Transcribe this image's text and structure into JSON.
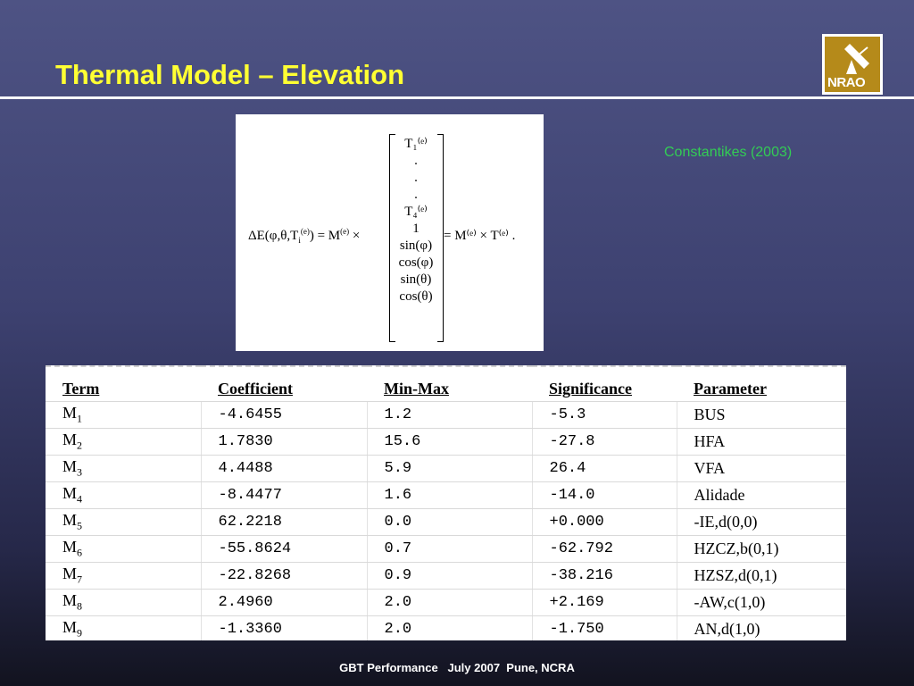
{
  "slide": {
    "title": "Thermal Model – Elevation",
    "citation": "Constantikes (2003)",
    "footer": "GBT Performance   July 2007  Pune, NCRA",
    "logo_text": "NRAO"
  },
  "equation": {
    "lhs": "ΔE(φ,θ,T",
    "lhs_sub": "i",
    "lhs_sup": "(e)",
    "lhs_tail": ") = M",
    "m_sup": "(e)",
    "times": "×",
    "vector": [
      "T₁⁽ᵉ⁾",
      ".",
      ".",
      ".",
      "T₄⁽ᵉ⁾",
      "1",
      "sin(φ)",
      "cos(φ)",
      "sin(θ)",
      "cos(θ)"
    ],
    "rhs": "= M⁽ᵉ⁾ × T⁽ᵉ⁾ ."
  },
  "table": {
    "headers": [
      "Term",
      "Coefficient",
      "Min-Max",
      "Significance",
      "Parameter"
    ],
    "rows": [
      {
        "term": "M",
        "sub": "1",
        "coefficient": "-4.6455",
        "minmax": "1.2",
        "significance": "-5.3",
        "parameter": "BUS"
      },
      {
        "term": "M",
        "sub": "2",
        "coefficient": "1.7830",
        "minmax": "15.6",
        "significance": "-27.8",
        "parameter": "HFA"
      },
      {
        "term": "M",
        "sub": "3",
        "coefficient": "4.4488",
        "minmax": "5.9",
        "significance": "26.4",
        "parameter": "VFA"
      },
      {
        "term": "M",
        "sub": "4",
        "coefficient": "-8.4477",
        "minmax": "1.6",
        "significance": "-14.0",
        "parameter": "Alidade"
      },
      {
        "term": "M",
        "sub": "5",
        "coefficient": "62.2218",
        "minmax": "0.0",
        "significance": "+0.000",
        "parameter": "-IE,d(0,0)"
      },
      {
        "term": "M",
        "sub": "6",
        "coefficient": "-55.8624",
        "minmax": "0.7",
        "significance": "-62.792",
        "parameter": "HZCZ,b(0,1)"
      },
      {
        "term": "M",
        "sub": "7",
        "coefficient": "-22.8268",
        "minmax": "0.9",
        "significance": "-38.216",
        "parameter": "HZSZ,d(0,1)"
      },
      {
        "term": "M",
        "sub": "8",
        "coefficient": "2.4960",
        "minmax": "2.0",
        "significance": "+2.169",
        "parameter": "-AW,c(1,0)"
      },
      {
        "term": "M",
        "sub": "9",
        "coefficient": "-1.3360",
        "minmax": "2.0",
        "significance": "-1.750",
        "parameter": "AN,d(1,0)"
      }
    ]
  }
}
